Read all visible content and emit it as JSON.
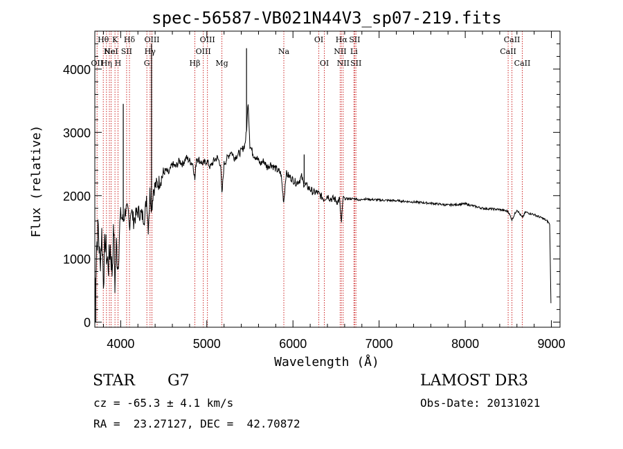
{
  "chart_data": {
    "type": "line",
    "title": "spec-56587-VB021N44V3_sp07-219.fits",
    "xlabel": "Wavelength (Å)",
    "ylabel": "Flux (relative)",
    "xlim": [
      3700,
      9100
    ],
    "ylim": [
      -80,
      4600
    ],
    "xticks": [
      4000,
      5000,
      6000,
      7000,
      8000,
      9000
    ],
    "yticks": [
      0,
      1000,
      2000,
      3000,
      4000
    ],
    "grid": false,
    "series": [
      {
        "name": "spectrum",
        "x": [
          3700,
          3720,
          3740,
          3760,
          3780,
          3800,
          3820,
          3840,
          3860,
          3880,
          3900,
          3920,
          3933,
          3950,
          3968,
          3990,
          4000,
          4030,
          4060,
          4090,
          4101,
          4120,
          4150,
          4180,
          4200,
          4240,
          4280,
          4300,
          4320,
          4340,
          4360,
          4380,
          4400,
          4440,
          4480,
          4520,
          4560,
          4600,
          4640,
          4680,
          4720,
          4760,
          4800,
          4840,
          4861,
          4880,
          4920,
          4960,
          5000,
          5040,
          5080,
          5120,
          5160,
          5175,
          5200,
          5240,
          5280,
          5320,
          5360,
          5400,
          5440,
          5460,
          5480,
          5500,
          5540,
          5580,
          5620,
          5660,
          5700,
          5740,
          5780,
          5820,
          5860,
          5893,
          5920,
          5960,
          6000,
          6040,
          6080,
          6100,
          6120,
          6160,
          6200,
          6240,
          6280,
          6320,
          6360,
          6400,
          6440,
          6480,
          6520,
          6540,
          6563,
          6580,
          6620,
          6660,
          6700,
          6740,
          6780,
          6800,
          7000,
          7200,
          7400,
          7600,
          7800,
          8000,
          8200,
          8400,
          8498,
          8542,
          8600,
          8662,
          8700,
          8800,
          8900,
          8950,
          8980,
          8995
        ],
        "y": [
          200,
          1200,
          1500,
          900,
          1400,
          700,
          1300,
          1000,
          900,
          1200,
          800,
          1500,
          600,
          1200,
          900,
          1500,
          1700,
          1600,
          1800,
          1700,
          1500,
          1800,
          1600,
          1700,
          1750,
          1700,
          1650,
          2000,
          1500,
          2050,
          1800,
          2100,
          2150,
          2200,
          2300,
          2400,
          2350,
          2500,
          2450,
          2550,
          2500,
          2600,
          2550,
          2500,
          2250,
          2600,
          2550,
          2500,
          2550,
          2450,
          2550,
          2600,
          2500,
          2000,
          2500,
          2600,
          2700,
          2600,
          2650,
          2700,
          2800,
          3000,
          3500,
          2800,
          2650,
          2600,
          2500,
          2550,
          2450,
          2500,
          2450,
          2400,
          2350,
          1900,
          2350,
          2300,
          2250,
          2200,
          2250,
          2300,
          2200,
          2150,
          2100,
          2050,
          2050,
          2000,
          1950,
          2000,
          1950,
          1950,
          1900,
          1950,
          1550,
          1950,
          1950,
          1950,
          1950,
          1950,
          1920,
          1950,
          1930,
          1920,
          1900,
          1880,
          1850,
          1870,
          1800,
          1780,
          1750,
          1620,
          1780,
          1650,
          1740,
          1700,
          1640,
          1600,
          1550,
          300
        ]
      }
    ],
    "spikes": [
      {
        "x": 3710,
        "y": 0
      },
      {
        "x": 4030,
        "y": 3450
      },
      {
        "x": 4358,
        "y": 4400
      },
      {
        "x": 5461,
        "y": 4330
      },
      {
        "x": 6130,
        "y": 2650
      }
    ],
    "lines": [
      {
        "x": 3726,
        "label": "OII",
        "row": 3
      },
      {
        "x": 3798,
        "label": "Hθ",
        "row": 1
      },
      {
        "x": 3835,
        "label": "Hη",
        "row": 3
      },
      {
        "x": 3869,
        "label": "Ne",
        "row": 2
      },
      {
        "x": 3889,
        "label": "HeI",
        "row": 2
      },
      {
        "x": 3934,
        "label": "K",
        "row": 1
      },
      {
        "x": 3969,
        "label": "H",
        "row": 3
      },
      {
        "x": 4069,
        "label": "SII",
        "row": 2
      },
      {
        "x": 4102,
        "label": "Hδ",
        "row": 1
      },
      {
        "x": 4304,
        "label": "G",
        "row": 3
      },
      {
        "x": 4341,
        "label": "Hγ",
        "row": 2
      },
      {
        "x": 4363,
        "label": "OIII",
        "row": 1
      },
      {
        "x": 4861,
        "label": "Hβ",
        "row": 3
      },
      {
        "x": 4959,
        "label": "OIII",
        "row": 2
      },
      {
        "x": 5007,
        "label": "OIII",
        "row": 1
      },
      {
        "x": 5175,
        "label": "Mg",
        "row": 3
      },
      {
        "x": 5894,
        "label": "Na",
        "row": 2
      },
      {
        "x": 6300,
        "label": "OI",
        "row": 1
      },
      {
        "x": 6364,
        "label": "OI",
        "row": 3
      },
      {
        "x": 6548,
        "label": "NII",
        "row": 2
      },
      {
        "x": 6563,
        "label": "Hα",
        "row": 1
      },
      {
        "x": 6583,
        "label": "NII",
        "row": 3
      },
      {
        "x": 6708,
        "label": "Li",
        "row": 2
      },
      {
        "x": 6716,
        "label": "SII",
        "row": 1
      },
      {
        "x": 6731,
        "label": "SII",
        "row": 3
      },
      {
        "x": 8498,
        "label": "CaII",
        "row": 2
      },
      {
        "x": 8542,
        "label": "CaII",
        "row": 1
      },
      {
        "x": 8662,
        "label": "CaII",
        "row": 3
      }
    ]
  },
  "info": {
    "object_class": "STAR",
    "subclass": "G7",
    "survey": "LAMOST DR3",
    "cz": "cz = -65.3 ± 4.1 km/s",
    "obs_date": "Obs-Date: 20131021",
    "coords": "RA =  23.27127, DEC =  42.70872"
  },
  "colors": {
    "line_markers": "#cc2222",
    "spectrum": "#000000"
  }
}
